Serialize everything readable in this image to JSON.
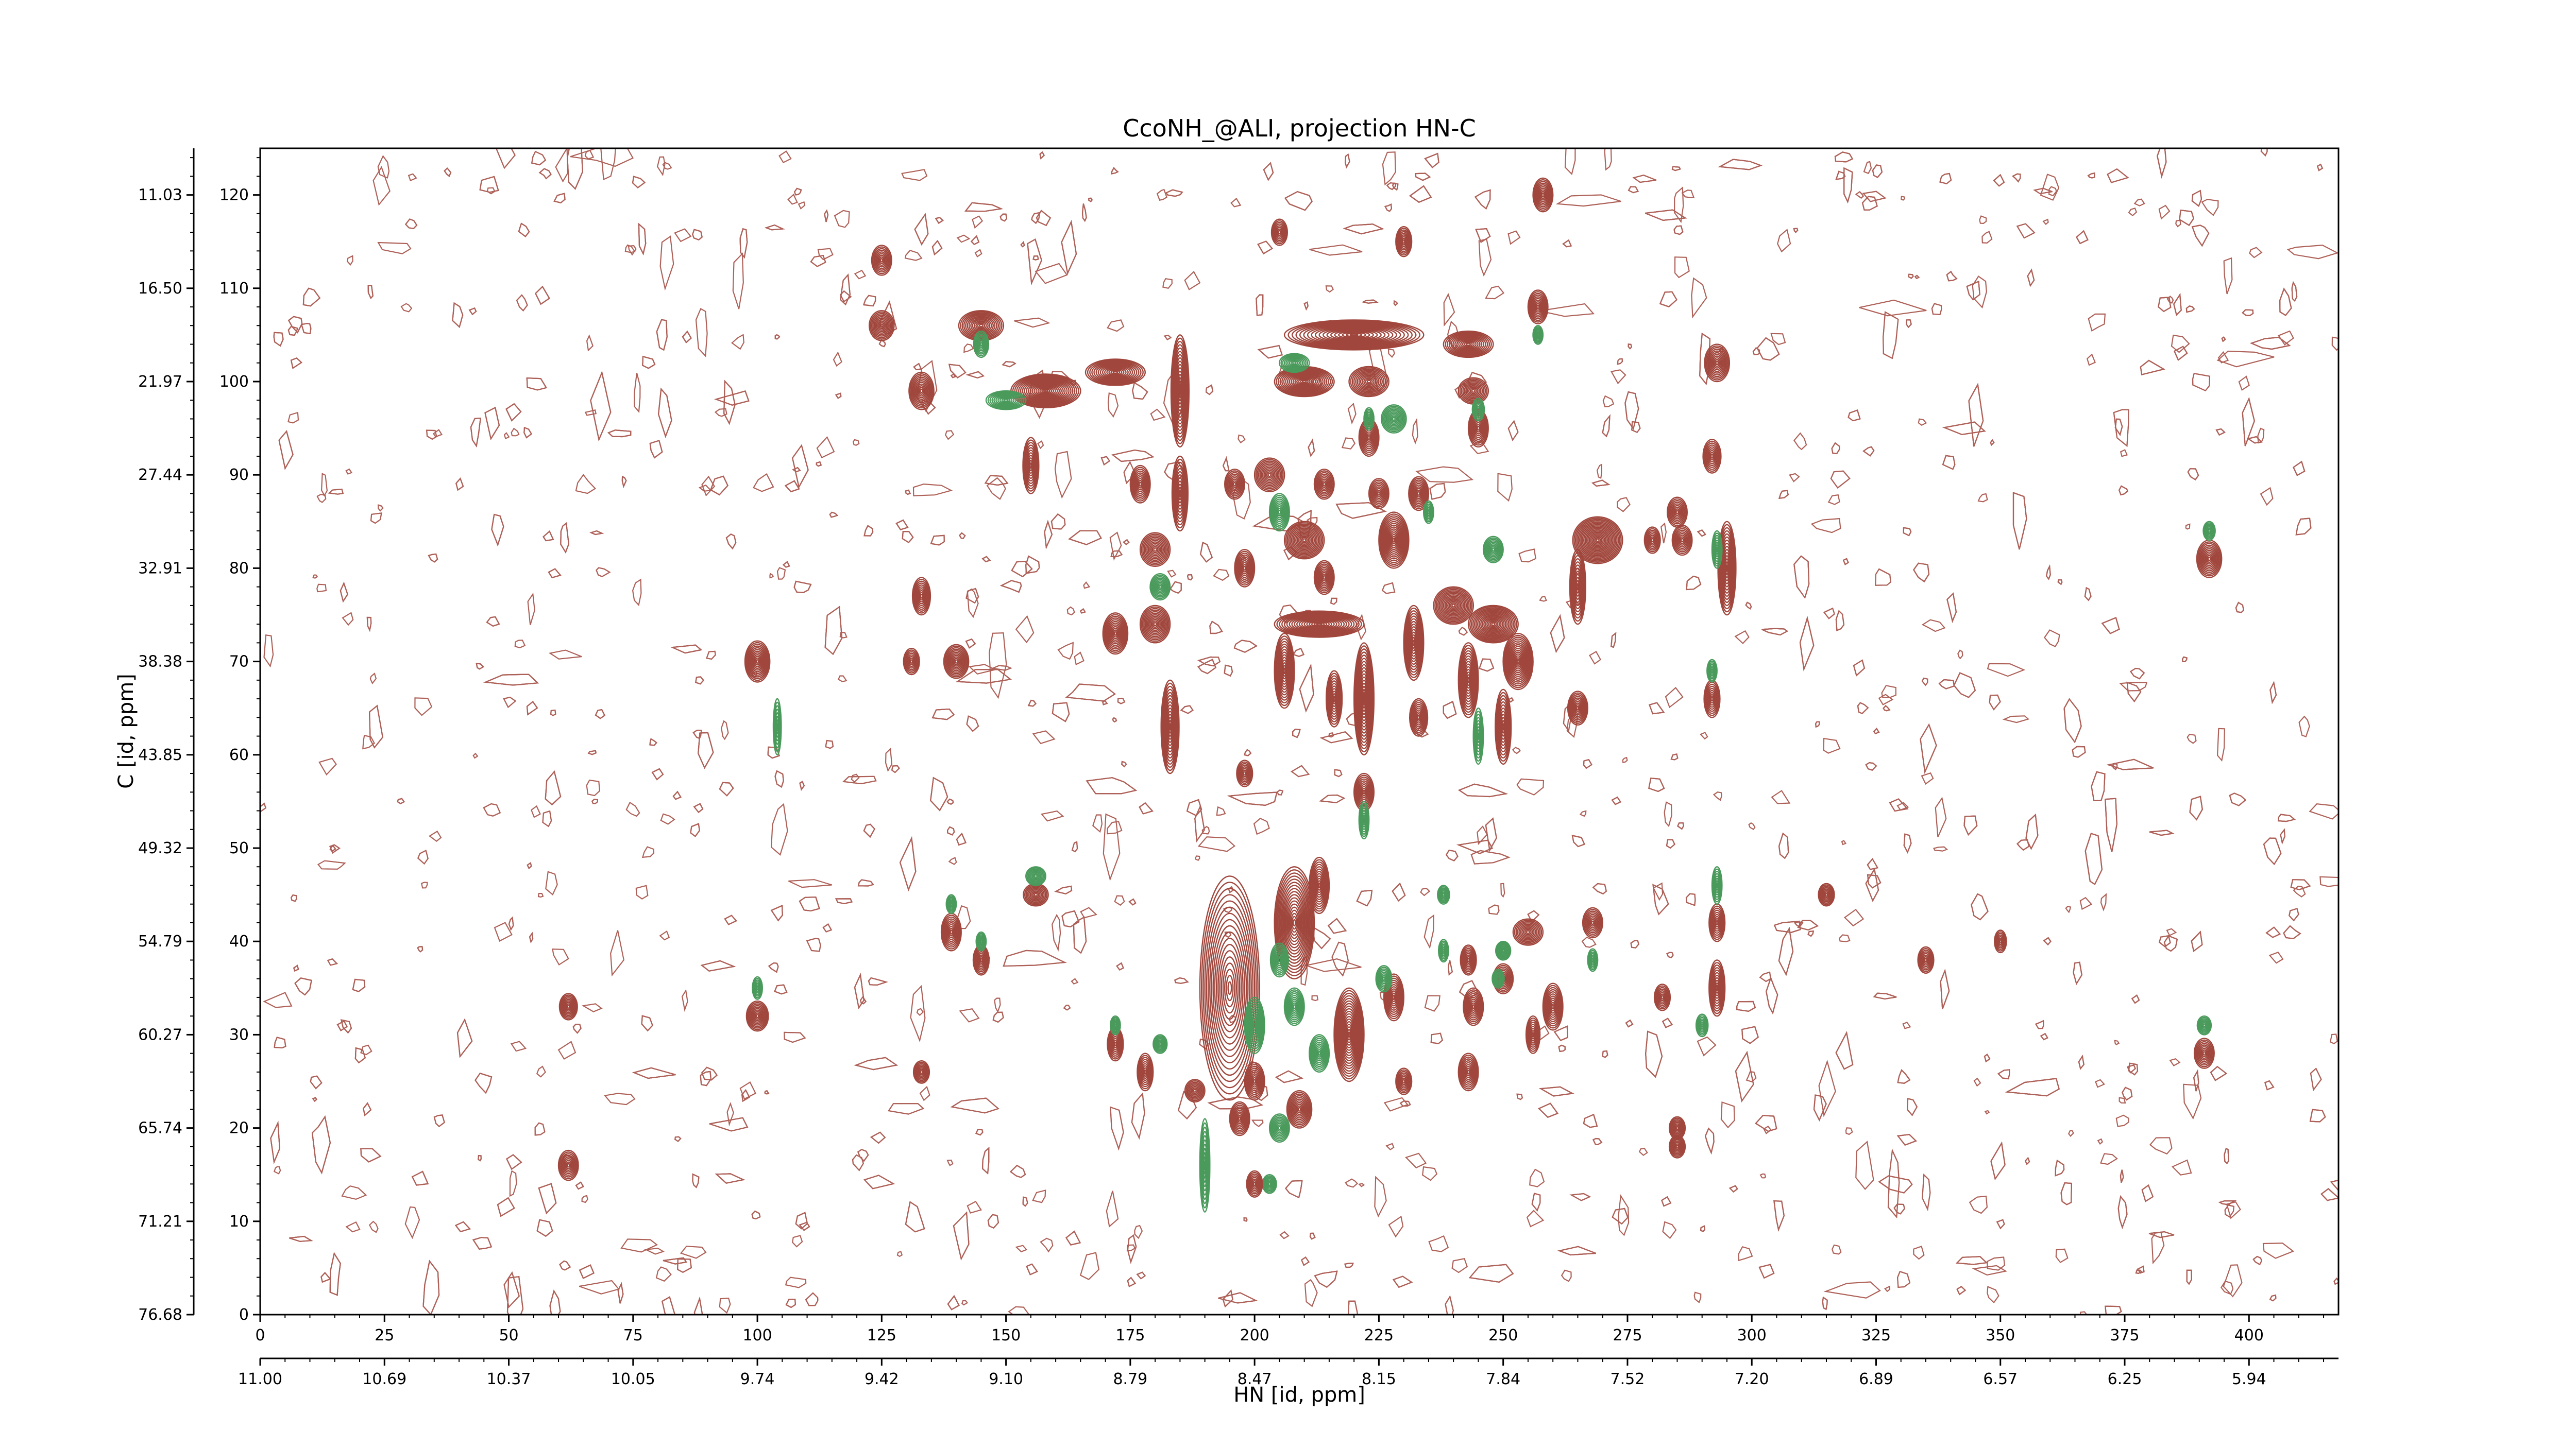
{
  "chart_data": {
    "type": "contour",
    "title": "CcoNH_@ALI, projection HN-C",
    "xlabel": "HN [id, ppm]",
    "ylabel": "C [id, ppm]",
    "xlim": [
      0,
      418
    ],
    "ylim": [
      0,
      125
    ],
    "x_index_ticks": [
      0,
      25,
      50,
      75,
      100,
      125,
      150,
      175,
      200,
      225,
      250,
      275,
      300,
      325,
      350,
      375,
      400
    ],
    "x_ppm_ticks": [
      "11.00",
      "10.69",
      "10.37",
      "10.05",
      "9.74",
      "9.42",
      "9.10",
      "8.79",
      "8.47",
      "8.15",
      "7.84",
      "7.52",
      "7.20",
      "6.89",
      "6.57",
      "6.25",
      "5.94"
    ],
    "y_index_ticks": [
      0,
      10,
      20,
      30,
      40,
      50,
      60,
      70,
      80,
      90,
      100,
      110,
      120
    ],
    "y_ppm_ticks": [
      "76.68",
      "71.21",
      "65.74",
      "60.27",
      "54.79",
      "49.32",
      "43.85",
      "38.38",
      "32.91",
      "27.44",
      "21.97",
      "16.50",
      "11.03"
    ],
    "colors": {
      "positive": "#a0463c",
      "negative": "#4a9a5c",
      "axis": "#000000"
    },
    "peaks": [
      {
        "x": 125,
        "y": 113,
        "sx": 2.0,
        "sy": 1.6,
        "sign": 1
      },
      {
        "x": 125,
        "y": 106,
        "sx": 2.5,
        "sy": 1.6,
        "sign": 1
      },
      {
        "x": 133,
        "y": 99,
        "sx": 2.5,
        "sy": 2.0,
        "sign": 1
      },
      {
        "x": 145,
        "y": 106,
        "sx": 4.5,
        "sy": 1.6,
        "sign": 1
      },
      {
        "x": 145,
        "y": 104,
        "sx": 1.5,
        "sy": 1.4,
        "sign": -1
      },
      {
        "x": 158,
        "y": 99,
        "sx": 7.0,
        "sy": 1.8,
        "sign": 1
      },
      {
        "x": 150,
        "y": 98,
        "sx": 4.0,
        "sy": 1.0,
        "sign": -1
      },
      {
        "x": 155,
        "y": 91,
        "sx": 1.6,
        "sy": 3.0,
        "sign": 1
      },
      {
        "x": 172,
        "y": 101,
        "sx": 6.0,
        "sy": 1.4,
        "sign": 1
      },
      {
        "x": 185,
        "y": 99,
        "sx": 1.8,
        "sy": 6.0,
        "sign": 1
      },
      {
        "x": 185,
        "y": 88,
        "sx": 1.6,
        "sy": 4.0,
        "sign": 1
      },
      {
        "x": 177,
        "y": 89,
        "sx": 2.0,
        "sy": 2.0,
        "sign": 1
      },
      {
        "x": 180,
        "y": 82,
        "sx": 3.0,
        "sy": 1.8,
        "sign": 1
      },
      {
        "x": 181,
        "y": 78,
        "sx": 2.0,
        "sy": 1.4,
        "sign": -1
      },
      {
        "x": 172,
        "y": 73,
        "sx": 2.5,
        "sy": 2.2,
        "sign": 1
      },
      {
        "x": 180,
        "y": 74,
        "sx": 3.0,
        "sy": 2.0,
        "sign": 1
      },
      {
        "x": 183,
        "y": 63,
        "sx": 1.8,
        "sy": 5.0,
        "sign": 1
      },
      {
        "x": 100,
        "y": 70,
        "sx": 2.5,
        "sy": 2.2,
        "sign": 1
      },
      {
        "x": 104,
        "y": 63,
        "sx": 0.8,
        "sy": 3.0,
        "sign": -1
      },
      {
        "x": 100,
        "y": 32,
        "sx": 2.2,
        "sy": 1.6,
        "sign": 1
      },
      {
        "x": 100,
        "y": 35,
        "sx": 1.0,
        "sy": 1.2,
        "sign": -1
      },
      {
        "x": 62,
        "y": 33,
        "sx": 1.8,
        "sy": 1.4,
        "sign": 1
      },
      {
        "x": 62,
        "y": 16,
        "sx": 2.0,
        "sy": 1.6,
        "sign": 1
      },
      {
        "x": 133,
        "y": 77,
        "sx": 1.8,
        "sy": 2.0,
        "sign": 1
      },
      {
        "x": 131,
        "y": 70,
        "sx": 1.6,
        "sy": 1.4,
        "sign": 1
      },
      {
        "x": 140,
        "y": 70,
        "sx": 2.5,
        "sy": 1.8,
        "sign": 1
      },
      {
        "x": 139,
        "y": 41,
        "sx": 2.0,
        "sy": 2.0,
        "sign": 1
      },
      {
        "x": 139,
        "y": 44,
        "sx": 1.0,
        "sy": 1.0,
        "sign": -1
      },
      {
        "x": 145,
        "y": 38,
        "sx": 1.6,
        "sy": 1.6,
        "sign": 1
      },
      {
        "x": 145,
        "y": 40,
        "sx": 1.0,
        "sy": 1.0,
        "sign": -1
      },
      {
        "x": 156,
        "y": 45,
        "sx": 2.5,
        "sy": 1.2,
        "sign": 1
      },
      {
        "x": 156,
        "y": 47,
        "sx": 2.0,
        "sy": 1.0,
        "sign": -1
      },
      {
        "x": 133,
        "y": 26,
        "sx": 1.6,
        "sy": 1.2,
        "sign": 1
      },
      {
        "x": 205,
        "y": 116,
        "sx": 1.6,
        "sy": 1.4,
        "sign": 1
      },
      {
        "x": 230,
        "y": 115,
        "sx": 1.6,
        "sy": 1.6,
        "sign": 1
      },
      {
        "x": 258,
        "y": 120,
        "sx": 2.0,
        "sy": 1.8,
        "sign": 1
      },
      {
        "x": 257,
        "y": 108,
        "sx": 2.0,
        "sy": 1.8,
        "sign": 1
      },
      {
        "x": 257,
        "y": 105,
        "sx": 1.0,
        "sy": 1.0,
        "sign": -1
      },
      {
        "x": 220,
        "y": 105,
        "sx": 14.0,
        "sy": 1.6,
        "sign": 1
      },
      {
        "x": 243,
        "y": 104,
        "sx": 5.0,
        "sy": 1.4,
        "sign": 1
      },
      {
        "x": 210,
        "y": 100,
        "sx": 6.0,
        "sy": 1.6,
        "sign": 1
      },
      {
        "x": 208,
        "y": 102,
        "sx": 3.0,
        "sy": 1.0,
        "sign": -1
      },
      {
        "x": 223,
        "y": 100,
        "sx": 4.0,
        "sy": 1.6,
        "sign": 1
      },
      {
        "x": 244,
        "y": 99,
        "sx": 3.0,
        "sy": 1.4,
        "sign": 1
      },
      {
        "x": 228,
        "y": 96,
        "sx": 2.5,
        "sy": 1.5,
        "sign": -1
      },
      {
        "x": 245,
        "y": 95,
        "sx": 2.0,
        "sy": 2.0,
        "sign": 1
      },
      {
        "x": 245,
        "y": 97,
        "sx": 1.2,
        "sy": 1.2,
        "sign": -1
      },
      {
        "x": 223,
        "y": 94,
        "sx": 2.0,
        "sy": 2.0,
        "sign": 1
      },
      {
        "x": 223,
        "y": 96,
        "sx": 1.0,
        "sy": 1.2,
        "sign": -1
      },
      {
        "x": 196,
        "y": 89,
        "sx": 2.0,
        "sy": 1.6,
        "sign": 1
      },
      {
        "x": 203,
        "y": 90,
        "sx": 3.0,
        "sy": 1.8,
        "sign": 1
      },
      {
        "x": 214,
        "y": 89,
        "sx": 2.0,
        "sy": 1.6,
        "sign": 1
      },
      {
        "x": 225,
        "y": 88,
        "sx": 2.0,
        "sy": 1.6,
        "sign": 1
      },
      {
        "x": 233,
        "y": 88,
        "sx": 2.0,
        "sy": 1.8,
        "sign": 1
      },
      {
        "x": 235,
        "y": 86,
        "sx": 1.0,
        "sy": 1.2,
        "sign": -1
      },
      {
        "x": 205,
        "y": 86,
        "sx": 2.0,
        "sy": 2.0,
        "sign": -1
      },
      {
        "x": 210,
        "y": 83,
        "sx": 4.0,
        "sy": 2.0,
        "sign": 1
      },
      {
        "x": 198,
        "y": 80,
        "sx": 2.0,
        "sy": 2.0,
        "sign": 1
      },
      {
        "x": 214,
        "y": 79,
        "sx": 2.0,
        "sy": 1.8,
        "sign": 1
      },
      {
        "x": 228,
        "y": 83,
        "sx": 3.0,
        "sy": 3.0,
        "sign": 1
      },
      {
        "x": 248,
        "y": 82,
        "sx": 2.0,
        "sy": 1.4,
        "sign": -1
      },
      {
        "x": 213,
        "y": 74,
        "sx": 9.0,
        "sy": 1.4,
        "sign": 1
      },
      {
        "x": 206,
        "y": 69,
        "sx": 2.0,
        "sy": 4.0,
        "sign": 1
      },
      {
        "x": 222,
        "y": 66,
        "sx": 2.0,
        "sy": 6.0,
        "sign": 1
      },
      {
        "x": 216,
        "y": 66,
        "sx": 1.6,
        "sy": 3.0,
        "sign": 1
      },
      {
        "x": 232,
        "y": 72,
        "sx": 2.0,
        "sy": 4.0,
        "sign": 1
      },
      {
        "x": 233,
        "y": 64,
        "sx": 1.8,
        "sy": 2.0,
        "sign": 1
      },
      {
        "x": 222,
        "y": 56,
        "sx": 2.0,
        "sy": 2.0,
        "sign": 1
      },
      {
        "x": 222,
        "y": 53,
        "sx": 1.0,
        "sy": 2.0,
        "sign": -1
      },
      {
        "x": 198,
        "y": 58,
        "sx": 1.6,
        "sy": 1.4,
        "sign": 1
      },
      {
        "x": 240,
        "y": 76,
        "sx": 4.0,
        "sy": 2.0,
        "sign": 1
      },
      {
        "x": 248,
        "y": 74,
        "sx": 5.0,
        "sy": 2.0,
        "sign": 1
      },
      {
        "x": 243,
        "y": 68,
        "sx": 2.0,
        "sy": 4.0,
        "sign": 1
      },
      {
        "x": 250,
        "y": 63,
        "sx": 1.6,
        "sy": 4.0,
        "sign": 1
      },
      {
        "x": 245,
        "y": 62,
        "sx": 1.0,
        "sy": 3.0,
        "sign": -1
      },
      {
        "x": 253,
        "y": 70,
        "sx": 3.0,
        "sy": 3.0,
        "sign": 1
      },
      {
        "x": 265,
        "y": 65,
        "sx": 2.0,
        "sy": 1.8,
        "sign": 1
      },
      {
        "x": 269,
        "y": 83,
        "sx": 5.0,
        "sy": 2.5,
        "sign": 1
      },
      {
        "x": 265,
        "y": 78,
        "sx": 1.6,
        "sy": 4.0,
        "sign": 1
      },
      {
        "x": 280,
        "y": 83,
        "sx": 1.6,
        "sy": 1.4,
        "sign": 1
      },
      {
        "x": 293,
        "y": 102,
        "sx": 2.5,
        "sy": 2.0,
        "sign": 1
      },
      {
        "x": 292,
        "y": 92,
        "sx": 1.8,
        "sy": 1.8,
        "sign": 1
      },
      {
        "x": 285,
        "y": 86,
        "sx": 2.0,
        "sy": 1.6,
        "sign": 1
      },
      {
        "x": 286,
        "y": 83,
        "sx": 2.0,
        "sy": 1.6,
        "sign": 1
      },
      {
        "x": 295,
        "y": 80,
        "sx": 1.8,
        "sy": 5.0,
        "sign": 1
      },
      {
        "x": 293,
        "y": 82,
        "sx": 1.0,
        "sy": 2.0,
        "sign": -1
      },
      {
        "x": 292,
        "y": 66,
        "sx": 1.6,
        "sy": 2.0,
        "sign": 1
      },
      {
        "x": 292,
        "y": 69,
        "sx": 1.0,
        "sy": 1.2,
        "sign": -1
      },
      {
        "x": 268,
        "y": 42,
        "sx": 2.0,
        "sy": 1.6,
        "sign": 1
      },
      {
        "x": 255,
        "y": 41,
        "sx": 3.0,
        "sy": 1.4,
        "sign": 1
      },
      {
        "x": 250,
        "y": 39,
        "sx": 1.5,
        "sy": 1.0,
        "sign": -1
      },
      {
        "x": 268,
        "y": 38,
        "sx": 1.0,
        "sy": 1.2,
        "sign": -1
      },
      {
        "x": 260,
        "y": 33,
        "sx": 2.0,
        "sy": 2.5,
        "sign": 1
      },
      {
        "x": 250,
        "y": 36,
        "sx": 2.0,
        "sy": 1.6,
        "sign": 1
      },
      {
        "x": 243,
        "y": 38,
        "sx": 1.6,
        "sy": 1.6,
        "sign": 1
      },
      {
        "x": 238,
        "y": 39,
        "sx": 1.0,
        "sy": 1.2,
        "sign": -1
      },
      {
        "x": 293,
        "y": 42,
        "sx": 1.6,
        "sy": 2.0,
        "sign": 1
      },
      {
        "x": 293,
        "y": 46,
        "sx": 1.0,
        "sy": 2.0,
        "sign": -1
      },
      {
        "x": 293,
        "y": 35,
        "sx": 1.6,
        "sy": 3.0,
        "sign": 1
      },
      {
        "x": 282,
        "y": 34,
        "sx": 1.6,
        "sy": 1.4,
        "sign": 1
      },
      {
        "x": 290,
        "y": 31,
        "sx": 1.2,
        "sy": 1.2,
        "sign": -1
      },
      {
        "x": 285,
        "y": 20,
        "sx": 1.6,
        "sy": 1.2,
        "sign": 1
      },
      {
        "x": 285,
        "y": 18,
        "sx": 1.6,
        "sy": 1.2,
        "sign": 1
      },
      {
        "x": 315,
        "y": 45,
        "sx": 1.6,
        "sy": 1.2,
        "sign": 1
      },
      {
        "x": 335,
        "y": 38,
        "sx": 1.6,
        "sy": 1.4,
        "sign": 1
      },
      {
        "x": 350,
        "y": 40,
        "sx": 1.2,
        "sy": 1.2,
        "sign": 1
      },
      {
        "x": 392,
        "y": 81,
        "sx": 2.5,
        "sy": 2.0,
        "sign": 1
      },
      {
        "x": 392,
        "y": 84,
        "sx": 1.2,
        "sy": 1.0,
        "sign": -1
      },
      {
        "x": 391,
        "y": 28,
        "sx": 2.0,
        "sy": 1.6,
        "sign": 1
      },
      {
        "x": 391,
        "y": 31,
        "sx": 1.4,
        "sy": 1.0,
        "sign": -1
      },
      {
        "x": 195,
        "y": 35,
        "sx": 6.0,
        "sy": 12.0,
        "sign": 1
      },
      {
        "x": 208,
        "y": 42,
        "sx": 4.0,
        "sy": 6.0,
        "sign": 1
      },
      {
        "x": 213,
        "y": 46,
        "sx": 2.0,
        "sy": 3.0,
        "sign": 1
      },
      {
        "x": 208,
        "y": 33,
        "sx": 2.0,
        "sy": 2.0,
        "sign": -1
      },
      {
        "x": 205,
        "y": 38,
        "sx": 1.8,
        "sy": 1.8,
        "sign": -1
      },
      {
        "x": 200,
        "y": 31,
        "sx": 2.0,
        "sy": 3.0,
        "sign": -1
      },
      {
        "x": 219,
        "y": 30,
        "sx": 3.0,
        "sy": 5.0,
        "sign": 1
      },
      {
        "x": 213,
        "y": 28,
        "sx": 2.0,
        "sy": 2.0,
        "sign": -1
      },
      {
        "x": 228,
        "y": 34,
        "sx": 2.0,
        "sy": 2.5,
        "sign": 1
      },
      {
        "x": 226,
        "y": 36,
        "sx": 1.6,
        "sy": 1.4,
        "sign": -1
      },
      {
        "x": 200,
        "y": 25,
        "sx": 2.0,
        "sy": 2.0,
        "sign": 1
      },
      {
        "x": 209,
        "y": 22,
        "sx": 2.5,
        "sy": 2.0,
        "sign": 1
      },
      {
        "x": 205,
        "y": 20,
        "sx": 2.0,
        "sy": 1.5,
        "sign": -1
      },
      {
        "x": 197,
        "y": 21,
        "sx": 2.0,
        "sy": 1.8,
        "sign": 1
      },
      {
        "x": 203,
        "y": 14,
        "sx": 1.4,
        "sy": 1.0,
        "sign": -1
      },
      {
        "x": 188,
        "y": 24,
        "sx": 2.0,
        "sy": 1.2,
        "sign": 1
      },
      {
        "x": 190,
        "y": 16,
        "sx": 1.0,
        "sy": 5.0,
        "sign": -1
      },
      {
        "x": 172,
        "y": 29,
        "sx": 1.6,
        "sy": 1.8,
        "sign": 1
      },
      {
        "x": 178,
        "y": 26,
        "sx": 1.6,
        "sy": 2.0,
        "sign": 1
      },
      {
        "x": 181,
        "y": 29,
        "sx": 1.4,
        "sy": 1.0,
        "sign": -1
      },
      {
        "x": 172,
        "y": 31,
        "sx": 1.0,
        "sy": 1.0,
        "sign": -1
      },
      {
        "x": 200,
        "y": 14,
        "sx": 1.6,
        "sy": 1.4,
        "sign": 1
      },
      {
        "x": 230,
        "y": 25,
        "sx": 1.6,
        "sy": 1.4,
        "sign": 1
      },
      {
        "x": 244,
        "y": 33,
        "sx": 2.0,
        "sy": 2.0,
        "sign": 1
      },
      {
        "x": 243,
        "y": 26,
        "sx": 2.0,
        "sy": 2.0,
        "sign": 1
      },
      {
        "x": 256,
        "y": 30,
        "sx": 1.4,
        "sy": 2.0,
        "sign": 1
      },
      {
        "x": 249,
        "y": 36,
        "sx": 1.2,
        "sy": 1.0,
        "sign": -1
      },
      {
        "x": 238,
        "y": 45,
        "sx": 1.2,
        "sy": 1.0,
        "sign": -1
      }
    ]
  }
}
